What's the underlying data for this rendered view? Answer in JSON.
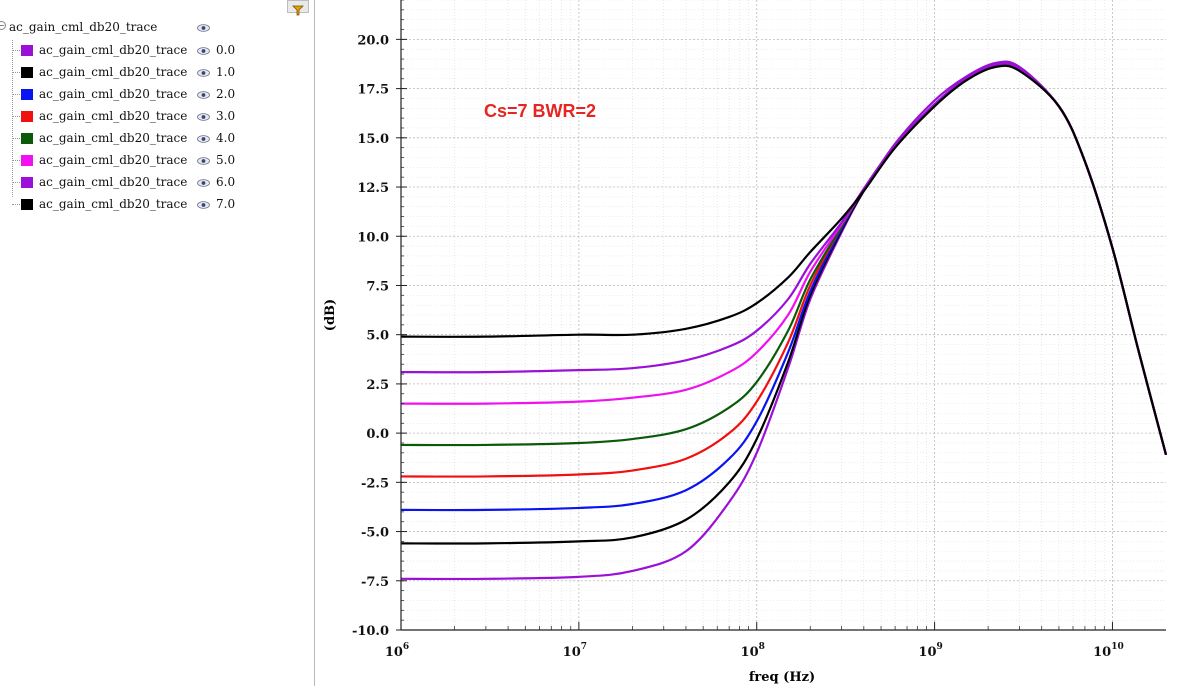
{
  "legend": {
    "root_label": "ac_gain_cml_db20_trace",
    "icons": {
      "expander": "collapse-icon",
      "visibility": "eye-icon",
      "filter": "filter-icon"
    },
    "items": [
      {
        "label": "ac_gain_cml_db20_trace",
        "value": "0.0",
        "color": "#9a10d8"
      },
      {
        "label": "ac_gain_cml_db20_trace",
        "value": "1.0",
        "color": "#000000"
      },
      {
        "label": "ac_gain_cml_db20_trace",
        "value": "2.0",
        "color": "#0a14f0"
      },
      {
        "label": "ac_gain_cml_db20_trace",
        "value": "3.0",
        "color": "#f01010"
      },
      {
        "label": "ac_gain_cml_db20_trace",
        "value": "4.0",
        "color": "#0b5a0b"
      },
      {
        "label": "ac_gain_cml_db20_trace",
        "value": "5.0",
        "color": "#f010f0"
      },
      {
        "label": "ac_gain_cml_db20_trace",
        "value": "6.0",
        "color": "#9a10d8"
      },
      {
        "label": "ac_gain_cml_db20_trace",
        "value": "7.0",
        "color": "#000000"
      }
    ]
  },
  "chart_data": {
    "type": "line",
    "xlabel": "freq (Hz)",
    "ylabel": "(dB)",
    "annotation": "Cs=7 BWR=2",
    "annotation_color": "#e52521",
    "xscale": "log",
    "xlim": [
      1000000,
      20000000000
    ],
    "ylim": [
      -10,
      22
    ],
    "yticks": [
      -10,
      -7.5,
      -5,
      -2.5,
      0,
      2.5,
      5,
      7.5,
      10,
      12.5,
      15,
      17.5,
      20
    ],
    "ytick_labels": [
      "-10.0",
      "-7.5",
      "-5.0",
      "-2.5",
      "0.0",
      "2.5",
      "5.0",
      "7.5",
      "10.0",
      "12.5",
      "15.0",
      "17.5",
      "20.0"
    ],
    "xticks": [
      1000000,
      10000000,
      100000000,
      1000000000,
      10000000000
    ],
    "xtick_labels": [
      {
        "base": "10",
        "exp": "6"
      },
      {
        "base": "10",
        "exp": "7"
      },
      {
        "base": "10",
        "exp": "8"
      },
      {
        "base": "10",
        "exp": "9"
      },
      {
        "base": "10",
        "exp": "10"
      }
    ],
    "grid": true,
    "legend_position": "left panel",
    "x": [
      1000000,
      3000000,
      10000000,
      20000000,
      40000000,
      70000000,
      100000000,
      150000000,
      200000000,
      300000000,
      400000000,
      600000000,
      1000000000,
      1500000000,
      2200000000,
      3000000000,
      5000000000,
      7000000000,
      10000000000,
      14000000000,
      20000000000
    ],
    "series": [
      {
        "name": "ac_gain_cml_db20_trace 0.0",
        "color": "#9a10d8",
        "values": [
          -7.4,
          -7.4,
          -7.3,
          -7.0,
          -6.0,
          -3.5,
          -1.0,
          3.3,
          6.8,
          10.2,
          12.3,
          14.7,
          16.9,
          18.1,
          18.8,
          18.6,
          16.6,
          13.8,
          9.4,
          4.2,
          -1.1
        ]
      },
      {
        "name": "ac_gain_cml_db20_trace 1.0",
        "color": "#000000",
        "values": [
          -5.6,
          -5.6,
          -5.5,
          -5.3,
          -4.4,
          -2.5,
          -0.3,
          3.6,
          7.0,
          10.3,
          12.3,
          14.6,
          16.7,
          18.0,
          18.6,
          18.5,
          16.6,
          13.8,
          9.4,
          4.2,
          -1.1
        ]
      },
      {
        "name": "ac_gain_cml_db20_trace 2.0",
        "color": "#0a14f0",
        "values": [
          -3.9,
          -3.9,
          -3.8,
          -3.6,
          -2.9,
          -1.3,
          0.6,
          4.1,
          7.2,
          10.4,
          12.4,
          14.6,
          16.7,
          18.0,
          18.7,
          18.5,
          16.6,
          13.8,
          9.4,
          4.2,
          -1.1
        ]
      },
      {
        "name": "ac_gain_cml_db20_trace 3.0",
        "color": "#f01010",
        "values": [
          -2.2,
          -2.2,
          -2.1,
          -1.9,
          -1.3,
          0.0,
          1.6,
          4.6,
          7.5,
          10.5,
          12.4,
          14.6,
          16.7,
          18.0,
          18.7,
          18.5,
          16.6,
          13.8,
          9.4,
          4.2,
          -1.1
        ]
      },
      {
        "name": "ac_gain_cml_db20_trace 4.0",
        "color": "#0b5a0b",
        "values": [
          -0.6,
          -0.6,
          -0.5,
          -0.3,
          0.2,
          1.3,
          2.6,
          5.2,
          7.8,
          10.5,
          12.4,
          14.6,
          16.7,
          18.0,
          18.7,
          18.5,
          16.6,
          13.8,
          9.4,
          4.2,
          -1.1
        ]
      },
      {
        "name": "ac_gain_cml_db20_trace 5.0",
        "color": "#f010f0",
        "values": [
          1.5,
          1.5,
          1.6,
          1.8,
          2.2,
          3.1,
          4.1,
          6.0,
          8.2,
          10.6,
          12.4,
          14.6,
          16.7,
          18.0,
          18.7,
          18.5,
          16.6,
          13.8,
          9.4,
          4.2,
          -1.1
        ]
      },
      {
        "name": "ac_gain_cml_db20_trace 6.0",
        "color": "#9a10d8",
        "values": [
          3.1,
          3.1,
          3.2,
          3.3,
          3.7,
          4.4,
          5.2,
          6.8,
          8.6,
          10.7,
          12.4,
          14.6,
          16.7,
          18.0,
          18.7,
          18.5,
          16.6,
          13.8,
          9.4,
          4.2,
          -1.1
        ]
      },
      {
        "name": "ac_gain_cml_db20_trace 7.0",
        "color": "#000000",
        "values": [
          4.9,
          4.9,
          5.0,
          5.0,
          5.3,
          5.9,
          6.6,
          7.9,
          9.2,
          10.9,
          12.3,
          14.5,
          16.6,
          17.9,
          18.6,
          18.4,
          16.6,
          13.8,
          9.4,
          4.2,
          -1.1
        ]
      }
    ]
  }
}
